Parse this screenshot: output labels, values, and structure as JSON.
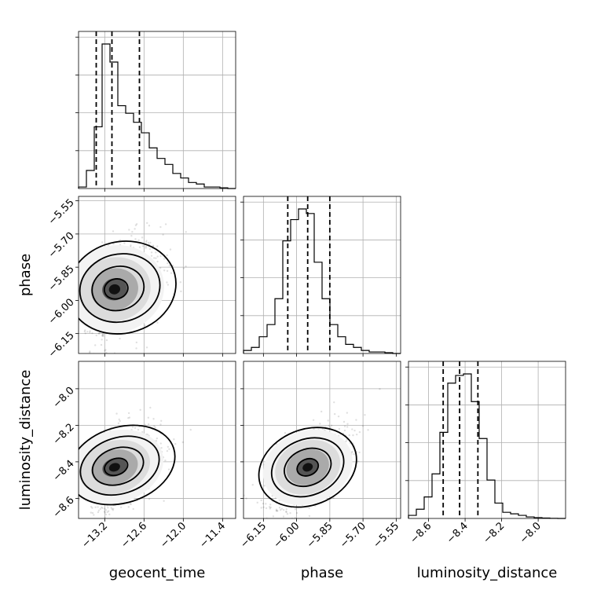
{
  "chart_data": {
    "type": "corner",
    "parameters": [
      "geocent_time",
      "phase",
      "luminosity_distance"
    ],
    "ticks": {
      "geocent_time": [
        "−13.2",
        "−12.6",
        "−12.0",
        "−11.4"
      ],
      "phase": [
        "−6.15",
        "−6.00",
        "−5.85",
        "−5.70",
        "−5.55"
      ],
      "phase_y": [
        "−5.55",
        "−5.70",
        "−5.85",
        "−6.00",
        "−6.15"
      ],
      "luminosity_distance": [
        "−8.6",
        "−8.4",
        "−8.2",
        "−8.0"
      ],
      "luminosity_distance_y": [
        "−8.0",
        "−8.2",
        "−8.4",
        "−8.6"
      ]
    },
    "ranges": {
      "geocent_time": [
        -13.6,
        -11.2
      ],
      "phase": [
        -6.24,
        -5.53
      ],
      "luminosity_distance": [
        -8.71,
        -7.85
      ]
    },
    "quantiles": {
      "geocent_time": [
        -13.33,
        -13.09,
        -12.67
      ],
      "phase": [
        -6.04,
        -5.95,
        -5.85
      ],
      "luminosity_distance": [
        -8.52,
        -8.43,
        -8.33
      ]
    },
    "histograms": {
      "geocent_time": {
        "start": -13.6,
        "width": 0.12,
        "counts": [
          1,
          12,
          41,
          96,
          84,
          55,
          50,
          44,
          37,
          27,
          20,
          16,
          10,
          7,
          4,
          3,
          1,
          1,
          0.5,
          0
        ]
      },
      "phase": {
        "start": -6.24,
        "width": 0.0355,
        "counts": [
          2,
          4,
          11,
          19,
          36,
          74,
          88,
          95,
          92,
          60,
          36,
          19,
          11,
          6,
          4,
          2,
          1,
          1,
          0.5,
          0
        ]
      },
      "luminosity_distance": {
        "start": -8.71,
        "width": 0.043,
        "counts": [
          2,
          6,
          14,
          29,
          56,
          88,
          93,
          94,
          76,
          52,
          25,
          10,
          4,
          3,
          2,
          1,
          0.5,
          0.3,
          0.1,
          0
        ]
      }
    },
    "kde": {
      "geocent_time": {
        "mean": -13.05,
        "sd": 0.33
      },
      "phase": {
        "mean": -5.95,
        "sd": 0.09
      },
      "luminosity_distance": {
        "mean": -8.43,
        "sd": 0.09
      },
      "correlations": {
        "phase|geocent_time": 0.35,
        "luminosity_distance|geocent_time": 0.45,
        "luminosity_distance|phase": 0.55
      }
    },
    "grid": true
  }
}
